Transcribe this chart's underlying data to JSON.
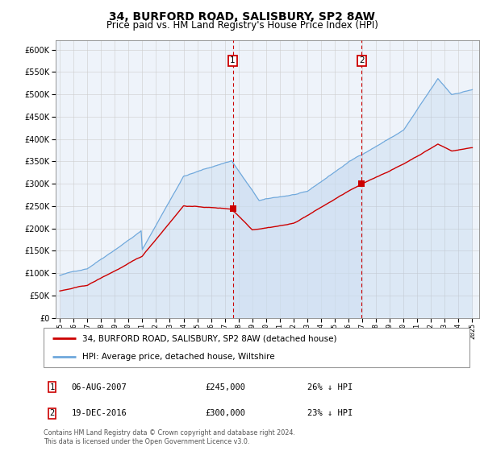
{
  "title": "34, BURFORD ROAD, SALISBURY, SP2 8AW",
  "subtitle": "Price paid vs. HM Land Registry's House Price Index (HPI)",
  "title_fontsize": 10,
  "subtitle_fontsize": 8.5,
  "hpi_color": "#a8c8e8",
  "hpi_line_color": "#6fa8dc",
  "property_color": "#cc0000",
  "shade_color": "#dce8f5",
  "ylim": [
    0,
    620000
  ],
  "yticks": [
    0,
    50000,
    100000,
    150000,
    200000,
    250000,
    300000,
    350000,
    400000,
    450000,
    500000,
    550000,
    600000
  ],
  "sale1_year": 2007.58,
  "sale1_price": 245000,
  "sale1_label": "06-AUG-2007",
  "sale1_amount": "£245,000",
  "sale1_hpi": "26% ↓ HPI",
  "sale2_year": 2016.96,
  "sale2_price": 300000,
  "sale2_label": "19-DEC-2016",
  "sale2_amount": "£300,000",
  "sale2_hpi": "23% ↓ HPI",
  "legend_line1": "34, BURFORD ROAD, SALISBURY, SP2 8AW (detached house)",
  "legend_line2": "HPI: Average price, detached house, Wiltshire",
  "footnote": "Contains HM Land Registry data © Crown copyright and database right 2024.\nThis data is licensed under the Open Government Licence v3.0."
}
